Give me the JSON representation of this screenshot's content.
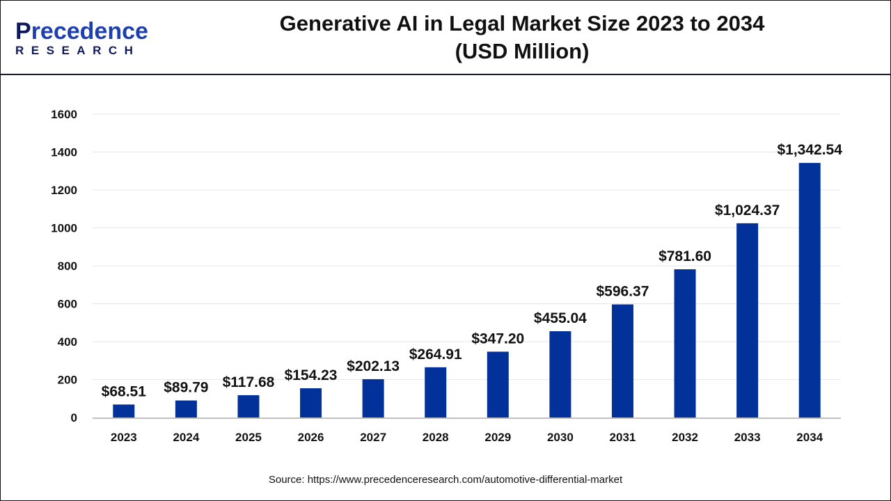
{
  "logo": {
    "main": "Precedence",
    "sub": "RESEARCH"
  },
  "header": {
    "title_line1": "Generative AI in Legal Market Size 2023 to 2034",
    "title_line2": "(USD Million)"
  },
  "source": "Source: https://www.precedenceresearch.com/automotive-differential-market",
  "colors": {
    "bar": "#02319a",
    "grid": "#e6e6e6",
    "axis": "#bfbfbf"
  },
  "chart_data": {
    "type": "bar",
    "title": "Generative AI in Legal Market Size 2023 to 2034 (USD Million)",
    "categories": [
      "2023",
      "2024",
      "2025",
      "2026",
      "2027",
      "2028",
      "2029",
      "2030",
      "2031",
      "2032",
      "2033",
      "2034"
    ],
    "values": [
      68.51,
      89.79,
      117.68,
      154.23,
      202.13,
      264.91,
      347.2,
      455.04,
      596.37,
      781.6,
      1024.37,
      1342.54
    ],
    "data_labels": [
      "$68.51",
      "$89.79",
      "$117.68",
      "$154.23",
      "$202.13",
      "$264.91",
      "$347.20",
      "$455.04",
      "$596.37",
      "$781.60",
      "$1,024.37",
      "$1,342.54"
    ],
    "yticks": [
      0,
      200,
      400,
      600,
      800,
      1000,
      1200,
      1400,
      1600
    ],
    "ylim": [
      0,
      1600
    ],
    "xlabel": "",
    "ylabel": "",
    "grid": true,
    "legend": "none"
  }
}
